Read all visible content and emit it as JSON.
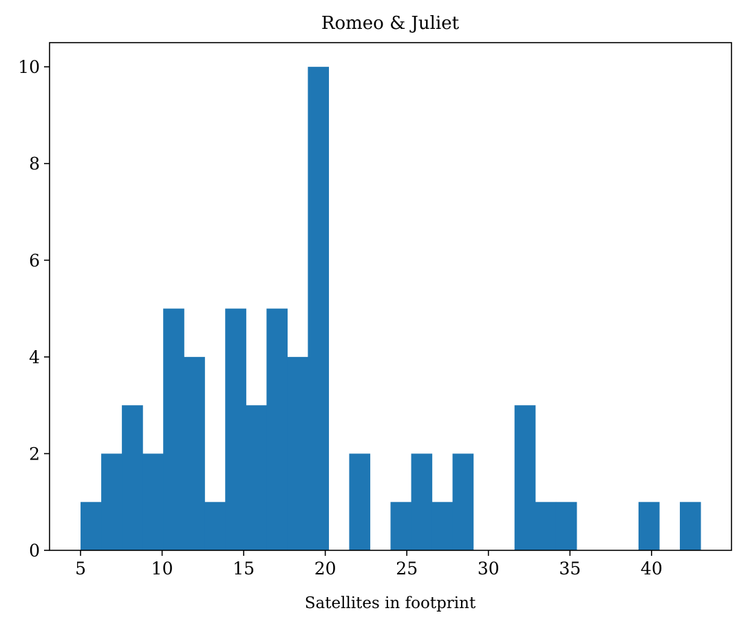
{
  "chart_data": {
    "type": "bar",
    "title": "Romeo & Juliet",
    "xlabel": "Satellites in footprint",
    "ylabel": "",
    "xlim": [
      3.1,
      44.9
    ],
    "ylim": [
      0,
      10.5
    ],
    "bin_start": 5,
    "bin_width": 1.2667,
    "counts": [
      1,
      2,
      3,
      2,
      5,
      4,
      1,
      5,
      3,
      5,
      4,
      10,
      0,
      2,
      0,
      1,
      2,
      1,
      2,
      0,
      0,
      3,
      1,
      1,
      0,
      0,
      0,
      1,
      0,
      1
    ],
    "x_ticks": [
      5,
      10,
      15,
      20,
      25,
      30,
      35,
      40
    ],
    "y_ticks": [
      0,
      2,
      4,
      6,
      8,
      10
    ],
    "bar_color": "#1f77b4",
    "grid": false,
    "legend": false
  }
}
